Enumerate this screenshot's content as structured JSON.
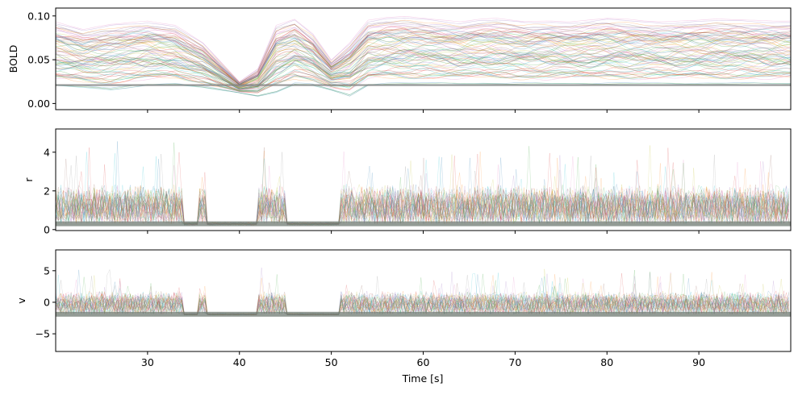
{
  "chart_data": [
    {
      "type": "line",
      "panel": "top",
      "ylabel": "BOLD",
      "xlabel": "",
      "xlim": [
        20,
        100
      ],
      "ylim": [
        -0.007,
        0.109
      ],
      "yticks": [
        0.0,
        0.05,
        0.1
      ],
      "ytick_labels": [
        "0.00",
        "0.05",
        "0.10"
      ],
      "xticks": [
        30,
        40,
        50,
        60,
        70,
        80,
        90
      ],
      "xtick_labels_shown": false,
      "baseline": 0.021,
      "grid": false,
      "legend": "none",
      "trace_count": 80,
      "description_of_series": "many thin semi-transparent overlapping traces",
      "envelope": {
        "x": [
          20,
          23,
          26,
          30,
          33,
          36,
          40,
          42,
          44,
          46,
          48,
          50,
          52,
          54,
          56,
          58,
          62,
          64,
          66,
          68,
          71,
          74,
          76,
          78,
          80,
          82,
          84,
          86,
          88,
          90,
          92,
          95,
          98,
          100
        ],
        "upper": [
          0.094,
          0.085,
          0.091,
          0.095,
          0.09,
          0.07,
          0.025,
          0.04,
          0.09,
          0.097,
          0.08,
          0.05,
          0.07,
          0.096,
          0.099,
          0.1,
          0.096,
          0.094,
          0.097,
          0.098,
          0.094,
          0.095,
          0.094,
          0.096,
          0.098,
          0.097,
          0.095,
          0.094,
          0.095,
          0.096,
          0.097,
          0.096,
          0.095,
          0.095
        ],
        "lower": [
          0.02,
          0.018,
          0.015,
          0.02,
          0.021,
          0.018,
          0.012,
          0.008,
          0.012,
          0.021,
          0.02,
          0.015,
          0.008,
          0.02,
          0.021,
          0.021,
          0.021,
          0.021,
          0.021,
          0.021,
          0.021,
          0.021,
          0.021,
          0.021,
          0.021,
          0.021,
          0.021,
          0.021,
          0.021,
          0.021,
          0.021,
          0.021,
          0.021,
          0.021
        ]
      }
    },
    {
      "type": "line",
      "panel": "middle",
      "ylabel": "r",
      "xlabel": "",
      "xlim": [
        20,
        100
      ],
      "ylim": [
        -0.05,
        5.2
      ],
      "yticks": [
        0,
        2,
        4
      ],
      "ytick_labels": [
        "0",
        "2",
        "4"
      ],
      "xticks": [
        30,
        40,
        50,
        60,
        70,
        80,
        90
      ],
      "xtick_labels_shown": false,
      "baseline": 0.3,
      "burst_peak": 2.2,
      "grid": false,
      "legend": "none",
      "quiet_intervals": [
        [
          34,
          35.5
        ],
        [
          36.5,
          42
        ],
        [
          45,
          51
        ]
      ]
    },
    {
      "type": "line",
      "panel": "bottom",
      "ylabel": "v",
      "xlabel": "Time [s]",
      "xlim": [
        20,
        100
      ],
      "ylim": [
        -7.8,
        8.3
      ],
      "yticks": [
        -5,
        0,
        5
      ],
      "ytick_labels": [
        "−5",
        "0",
        "5"
      ],
      "xticks": [
        30,
        40,
        50,
        60,
        70,
        80,
        90
      ],
      "xtick_labels": [
        "30",
        "40",
        "50",
        "60",
        "70",
        "80",
        "90"
      ],
      "baseline": -1.9,
      "burst_peak": 1.5,
      "grid": false,
      "legend": "none",
      "quiet_intervals": [
        [
          34,
          35.5
        ],
        [
          36.5,
          42
        ],
        [
          45,
          51
        ]
      ]
    }
  ],
  "colors": [
    "#1f77b4",
    "#ff7f0e",
    "#2ca02c",
    "#d62728",
    "#9467bd",
    "#8c564b",
    "#e377c2",
    "#7f7f7f",
    "#bcbd22",
    "#17becf"
  ]
}
